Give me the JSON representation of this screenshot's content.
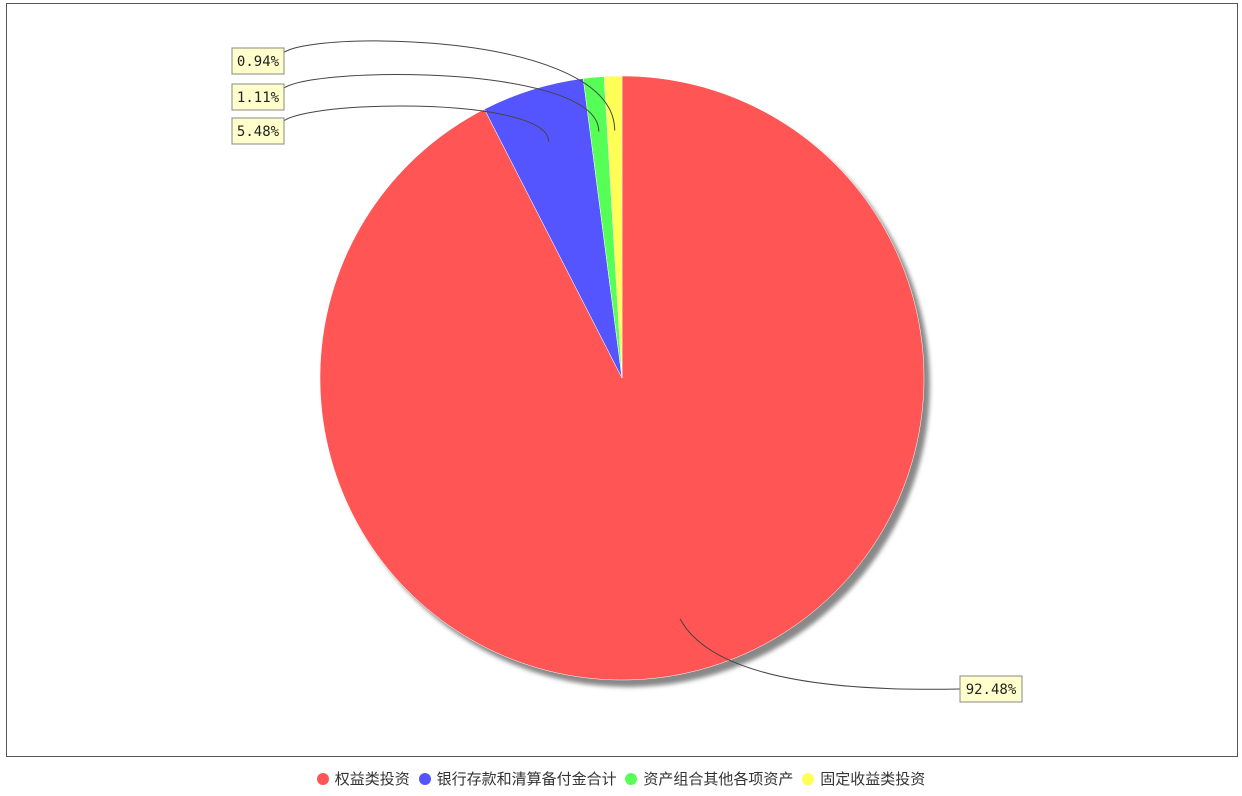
{
  "chart_data": {
    "type": "pie",
    "title": "",
    "slices": [
      {
        "name": "权益类投资",
        "value": 92.48,
        "label": "92.48%",
        "color": "#ff5555"
      },
      {
        "name": "银行存款和清算备付金合计",
        "value": 5.48,
        "label": "5.48%",
        "color": "#5555ff"
      },
      {
        "name": "资产组合其他各项资产",
        "value": 1.11,
        "label": "1.11%",
        "color": "#55ff55"
      },
      {
        "name": "固定收益类投资",
        "value": 0.94,
        "label": "0.94%",
        "color": "#ffff55"
      }
    ],
    "start_angle": "12 o'clock",
    "direction": "clockwise",
    "legend_position": "bottom",
    "label_background": "#ffffcc"
  }
}
